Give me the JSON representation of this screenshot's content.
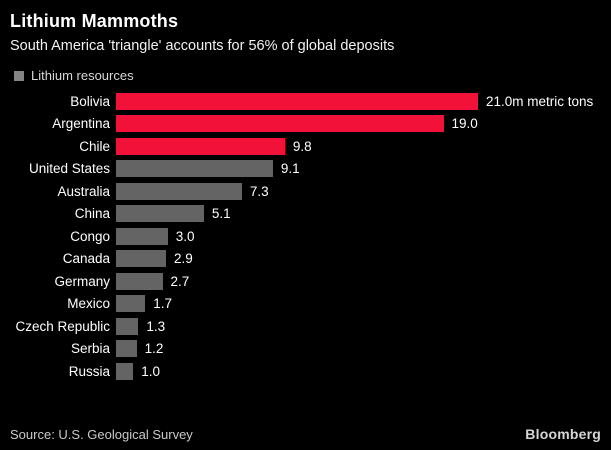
{
  "header": {
    "title": "Lithium Mammoths",
    "subtitle": "South America 'triangle' accounts for 56% of global deposits"
  },
  "legend": {
    "label": "Lithium resources",
    "swatch_color": "#848484"
  },
  "chart_data": {
    "type": "bar",
    "orientation": "horizontal",
    "title": "Lithium Mammoths",
    "subtitle": "South America 'triangle' accounts for 56% of global deposits",
    "series_name": "Lithium resources",
    "categories": [
      "Bolivia",
      "Argentina",
      "Chile",
      "United States",
      "Australia",
      "China",
      "Congo",
      "Canada",
      "Germany",
      "Mexico",
      "Czech Republic",
      "Serbia",
      "Russia"
    ],
    "values": [
      21.0,
      19.0,
      9.8,
      9.1,
      7.3,
      5.1,
      3.0,
      2.9,
      2.7,
      1.7,
      1.3,
      1.2,
      1.0
    ],
    "value_labels": [
      "21.0m metric tons",
      "19.0",
      "9.8",
      "9.1",
      "7.3",
      "5.1",
      "3.0",
      "2.9",
      "2.7",
      "1.7",
      "1.3",
      "1.2",
      "1.0"
    ],
    "unit": "m metric tons",
    "xlim": [
      0,
      21.0
    ],
    "grid": false,
    "axes_visible": false,
    "legend_position": "top-left",
    "highlight_categories": [
      "Bolivia",
      "Argentina",
      "Chile"
    ],
    "colors": {
      "highlight": "#f21239",
      "default": "#646464",
      "background": "#000000",
      "text": "#ffffff"
    }
  },
  "footer": {
    "source": "Source: U.S. Geological Survey",
    "brand": "Bloomberg"
  }
}
